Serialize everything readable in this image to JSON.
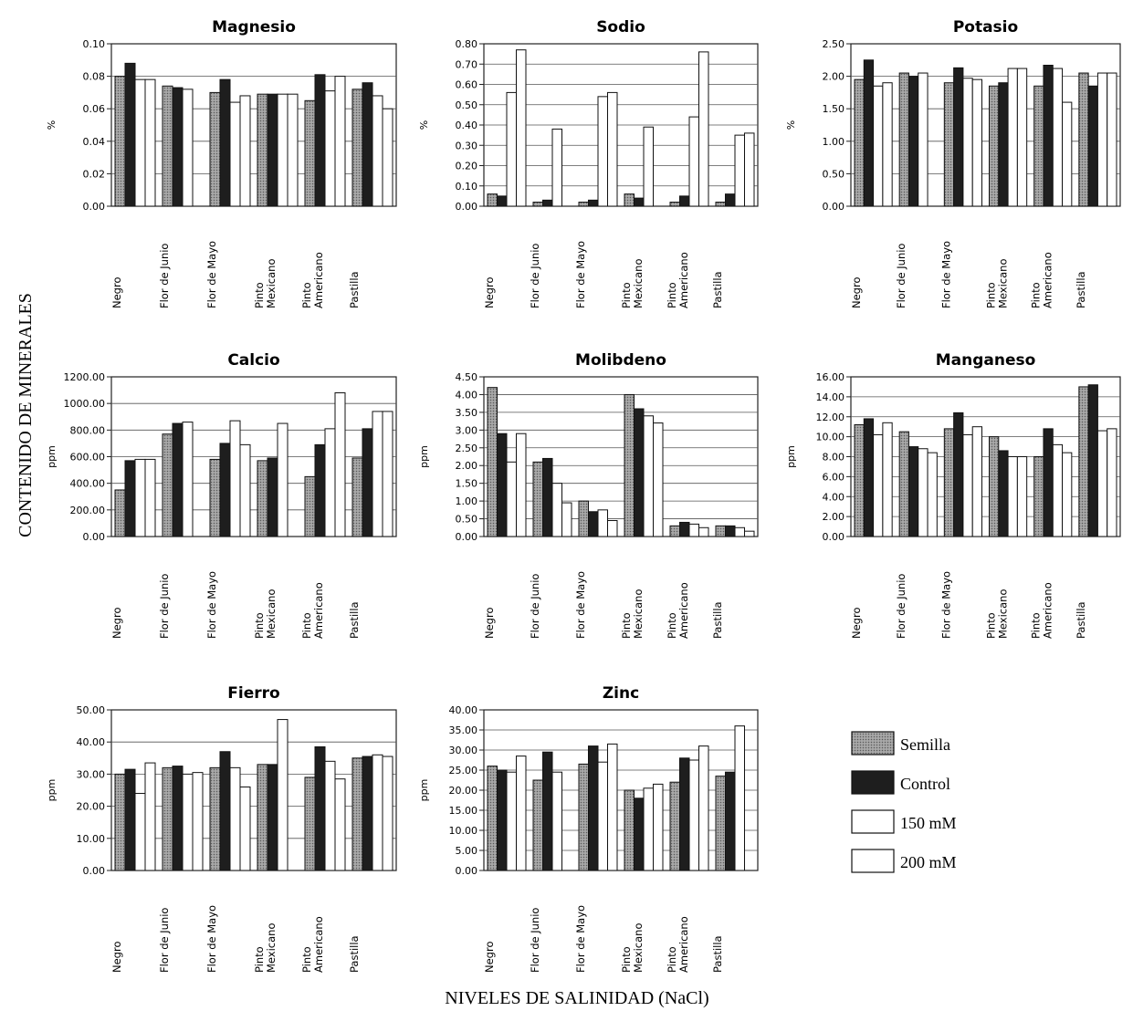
{
  "figure": {
    "y_axis_title": "CONTENIDO DE MINERALES",
    "x_axis_title": "NIVELES DE SALINIDAD (NaCl)"
  },
  "legend": [
    {
      "name": "Semilla",
      "color": "#8c8c8c"
    },
    {
      "name": "Control",
      "color": "#1e1e1e"
    },
    {
      "name": "150 mM",
      "color": "#ffffff"
    },
    {
      "name": "200 mM",
      "color": "#ffffff"
    }
  ],
  "categories": [
    [
      "Negro"
    ],
    [
      "Flor de Junio"
    ],
    [
      "Flor de Mayo"
    ],
    [
      "Pinto",
      "Mexicano"
    ],
    [
      "Pinto",
      "Americano"
    ],
    [
      "Pastilla"
    ]
  ],
  "chart_data": [
    {
      "type": "bar",
      "title": "Magnesio",
      "ylabel": "%",
      "ylim": [
        0,
        0.1
      ],
      "yticks": [
        "0.00",
        "0.02",
        "0.04",
        "0.06",
        "0.08",
        "0.10"
      ],
      "categories": [
        "Negro",
        "Flor de Junio",
        "Flor de Mayo",
        "Pinto Mexicano",
        "Pinto Americano",
        "Pastilla"
      ],
      "series": [
        {
          "name": "Semilla",
          "values": [
            0.08,
            0.074,
            0.07,
            0.069,
            0.065,
            0.072
          ]
        },
        {
          "name": "Control",
          "values": [
            0.088,
            0.073,
            0.078,
            0.069,
            0.081,
            0.076
          ]
        },
        {
          "name": "150 mM",
          "values": [
            0.078,
            0.072,
            0.064,
            0.069,
            0.071,
            0.068
          ]
        },
        {
          "name": "200 mM",
          "values": [
            0.078,
            0.0,
            0.068,
            0.069,
            0.08,
            0.06
          ]
        }
      ]
    },
    {
      "type": "bar",
      "title": "Sodio",
      "ylabel": "%",
      "ylim": [
        0,
        0.8
      ],
      "yticks": [
        "0.00",
        "0.10",
        "0.20",
        "0.30",
        "0.40",
        "0.50",
        "0.60",
        "0.70",
        "0.80"
      ],
      "categories": [
        "Negro",
        "Flor de Junio",
        "Flor de Mayo",
        "Pinto Mexicano",
        "Pinto Americano",
        "Pastilla"
      ],
      "series": [
        {
          "name": "Semilla",
          "values": [
            0.06,
            0.02,
            0.02,
            0.06,
            0.02,
            0.02
          ]
        },
        {
          "name": "Control",
          "values": [
            0.05,
            0.03,
            0.03,
            0.04,
            0.05,
            0.06
          ]
        },
        {
          "name": "150 mM",
          "values": [
            0.56,
            0.38,
            0.54,
            0.39,
            0.44,
            0.35
          ]
        },
        {
          "name": "200 mM",
          "values": [
            0.77,
            0.0,
            0.56,
            0.0,
            0.76,
            0.36
          ]
        }
      ]
    },
    {
      "type": "bar",
      "title": "Potasio",
      "ylabel": "%",
      "ylim": [
        0,
        2.5
      ],
      "yticks": [
        "0.00",
        "0.50",
        "1.00",
        "1.50",
        "2.00",
        "2.50"
      ],
      "categories": [
        "Negro",
        "Flor de Junio",
        "Flor de Mayo",
        "Pinto Mexicano",
        "Pinto Americano",
        "Pastilla"
      ],
      "series": [
        {
          "name": "Semilla",
          "values": [
            1.95,
            2.05,
            1.9,
            1.85,
            1.85,
            2.05
          ]
        },
        {
          "name": "Control",
          "values": [
            2.25,
            2.0,
            2.13,
            1.9,
            2.17,
            1.85
          ]
        },
        {
          "name": "150 mM",
          "values": [
            1.85,
            2.05,
            1.97,
            2.12,
            2.12,
            2.05
          ]
        },
        {
          "name": "200 mM",
          "values": [
            1.9,
            0.0,
            1.95,
            2.12,
            1.6,
            2.05
          ]
        }
      ]
    },
    {
      "type": "bar",
      "title": "Calcio",
      "ylabel": "ppm",
      "ylim": [
        0,
        1200
      ],
      "yticks": [
        "0.00",
        "200.00",
        "400.00",
        "600.00",
        "800.00",
        "1000.00",
        "1200.00"
      ],
      "categories": [
        "Negro",
        "Flor de Junio",
        "Flor de Mayo",
        "Pinto Mexicano",
        "Pinto Americano",
        "Pastilla"
      ],
      "series": [
        {
          "name": "Semilla",
          "values": [
            350,
            770,
            580,
            570,
            450,
            590
          ]
        },
        {
          "name": "Control",
          "values": [
            570,
            850,
            700,
            590,
            690,
            810
          ]
        },
        {
          "name": "150 mM",
          "values": [
            580,
            860,
            870,
            850,
            810,
            940
          ]
        },
        {
          "name": "200 mM",
          "values": [
            580,
            0,
            690,
            0,
            1080,
            940
          ]
        }
      ]
    },
    {
      "type": "bar",
      "title": "Molibdeno",
      "ylabel": "ppm",
      "ylim": [
        0,
        4.5
      ],
      "yticks": [
        "0.00",
        "0.50",
        "1.00",
        "1.50",
        "2.00",
        "2.50",
        "3.00",
        "3.50",
        "4.00",
        "4.50"
      ],
      "categories": [
        "Negro",
        "Flor de Junio",
        "Flor de Mayo",
        "Pinto Mexicano",
        "Pinto Americano",
        "Pastilla"
      ],
      "series": [
        {
          "name": "Semilla",
          "values": [
            4.2,
            2.1,
            1.0,
            4.0,
            0.3,
            0.3
          ]
        },
        {
          "name": "Control",
          "values": [
            2.9,
            2.2,
            0.7,
            3.6,
            0.4,
            0.3
          ]
        },
        {
          "name": "150 mM",
          "values": [
            2.1,
            1.5,
            0.75,
            3.4,
            0.35,
            0.25
          ]
        },
        {
          "name": "200 mM",
          "values": [
            2.9,
            0.95,
            0.45,
            3.2,
            0.25,
            0.15
          ]
        }
      ]
    },
    {
      "type": "bar",
      "title": "Manganeso",
      "ylabel": "ppm",
      "ylim": [
        0,
        16
      ],
      "yticks": [
        "0.00",
        "2.00",
        "4.00",
        "6.00",
        "8.00",
        "10.00",
        "12.00",
        "14.00",
        "16.00"
      ],
      "categories": [
        "Negro",
        "Flor de Junio",
        "Flor de Mayo",
        "Pinto Mexicano",
        "Pinto Americano",
        "Pastilla"
      ],
      "series": [
        {
          "name": "Semilla",
          "values": [
            11.2,
            10.5,
            10.8,
            10.0,
            8.0,
            15.0
          ]
        },
        {
          "name": "Control",
          "values": [
            11.8,
            9.0,
            12.4,
            8.6,
            10.8,
            15.2
          ]
        },
        {
          "name": "150 mM",
          "values": [
            10.2,
            8.8,
            10.2,
            8.0,
            9.2,
            10.6
          ]
        },
        {
          "name": "200 mM",
          "values": [
            11.4,
            8.4,
            11.0,
            8.0,
            8.4,
            10.8
          ]
        }
      ]
    },
    {
      "type": "bar",
      "title": "Fierro",
      "ylabel": "ppm",
      "ylim": [
        0,
        50
      ],
      "yticks": [
        "0.00",
        "10.00",
        "20.00",
        "30.00",
        "40.00",
        "50.00"
      ],
      "categories": [
        "Negro",
        "Flor de Junio",
        "Flor de Mayo",
        "Pinto Mexicano",
        "Pinto Americano",
        "Pastilla"
      ],
      "series": [
        {
          "name": "Semilla",
          "values": [
            30.0,
            32.0,
            32.0,
            33.0,
            29.0,
            35.0
          ]
        },
        {
          "name": "Control",
          "values": [
            31.5,
            32.5,
            37.0,
            33.0,
            38.5,
            35.5
          ]
        },
        {
          "name": "150 mM",
          "values": [
            24.0,
            30.0,
            32.0,
            47.0,
            34.0,
            36.0
          ]
        },
        {
          "name": "200 mM",
          "values": [
            33.5,
            30.5,
            26.0,
            0.0,
            28.5,
            35.5
          ]
        }
      ]
    },
    {
      "type": "bar",
      "title": "Zinc",
      "ylabel": "ppm",
      "ylim": [
        0,
        40
      ],
      "yticks": [
        "0.00",
        "5.00",
        "10.00",
        "15.00",
        "20.00",
        "25.00",
        "30.00",
        "35.00",
        "40.00"
      ],
      "categories": [
        "Negro",
        "Flor de Junio",
        "Flor de Mayo",
        "Pinto Mexicano",
        "Pinto Americano",
        "Pastilla"
      ],
      "series": [
        {
          "name": "Semilla",
          "values": [
            26.0,
            22.5,
            26.5,
            20.0,
            22.0,
            23.5
          ]
        },
        {
          "name": "Control",
          "values": [
            25.0,
            29.5,
            31.0,
            18.0,
            28.0,
            24.5
          ]
        },
        {
          "name": "150 mM",
          "values": [
            24.5,
            24.5,
            27.0,
            20.5,
            27.5,
            36.0
          ]
        },
        {
          "name": "200 mM",
          "values": [
            28.5,
            0.0,
            31.5,
            21.5,
            31.0,
            0.0
          ]
        }
      ]
    }
  ]
}
